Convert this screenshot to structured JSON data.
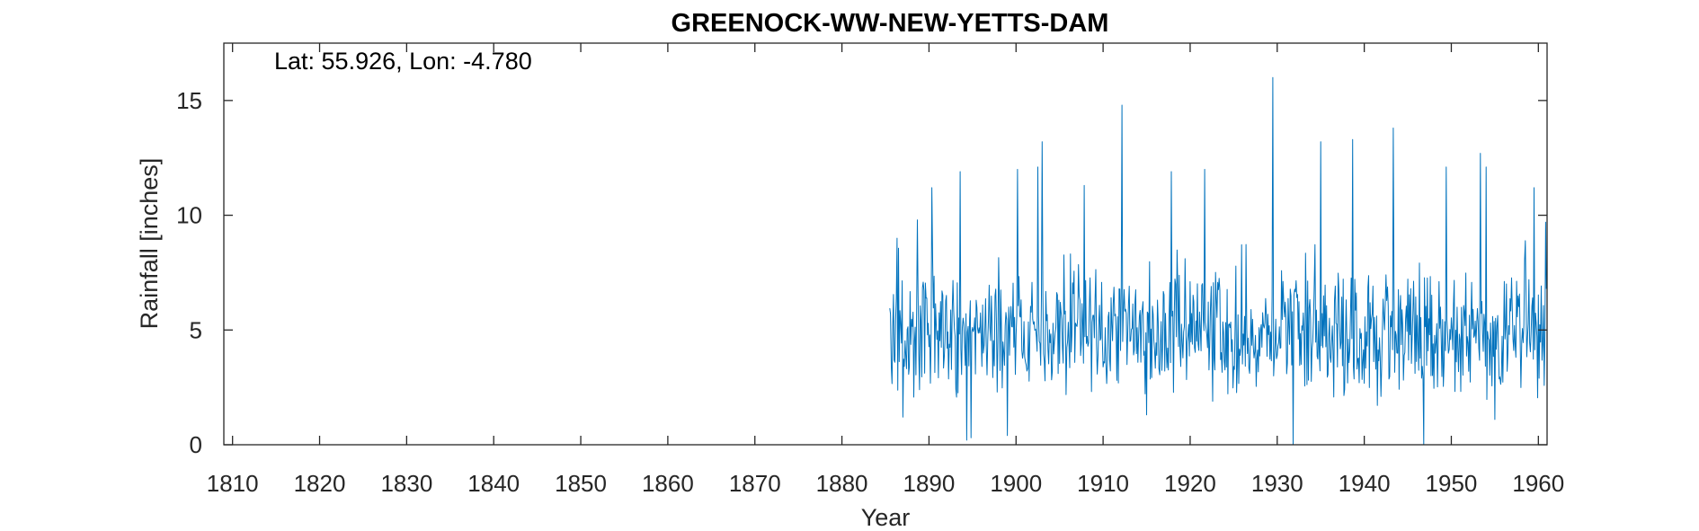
{
  "chart_data": {
    "type": "line",
    "title": "GREENOCK-WW-NEW-YETTS-DAM",
    "annotation": "Lat: 55.926, Lon: -4.780",
    "xlabel": "Year",
    "ylabel": "Rainfall [inches]",
    "xlim": [
      1809,
      1961
    ],
    "ylim": [
      0,
      17.5
    ],
    "xticks": [
      1810,
      1820,
      1830,
      1840,
      1850,
      1860,
      1870,
      1880,
      1890,
      1900,
      1910,
      1920,
      1930,
      1940,
      1950,
      1960
    ],
    "yticks": [
      0,
      5,
      10,
      15
    ],
    "grid": false,
    "line_color": "#0072BD",
    "series": [
      {
        "data_start": 1885.5,
        "data_end": 1960.9,
        "points_per_year": 12,
        "peaks": [
          {
            "x": 1885.6,
            "y": 5.7
          },
          {
            "x": 1886.3,
            "y": 9.0
          },
          {
            "x": 1887.0,
            "y": 1.2
          },
          {
            "x": 1888.7,
            "y": 9.8
          },
          {
            "x": 1890.3,
            "y": 11.2
          },
          {
            "x": 1893.6,
            "y": 11.9
          },
          {
            "x": 1894.3,
            "y": 0.2
          },
          {
            "x": 1894.8,
            "y": 0.3
          },
          {
            "x": 1899.0,
            "y": 0.4
          },
          {
            "x": 1900.2,
            "y": 12.0
          },
          {
            "x": 1902.5,
            "y": 12.1
          },
          {
            "x": 1903.0,
            "y": 13.2
          },
          {
            "x": 1907.8,
            "y": 11.3
          },
          {
            "x": 1912.2,
            "y": 14.8
          },
          {
            "x": 1915.0,
            "y": 1.3
          },
          {
            "x": 1917.8,
            "y": 11.9
          },
          {
            "x": 1921.7,
            "y": 12.0
          },
          {
            "x": 1929.5,
            "y": 16.0
          },
          {
            "x": 1931.8,
            "y": 0.0
          },
          {
            "x": 1935.0,
            "y": 13.2
          },
          {
            "x": 1938.7,
            "y": 13.3
          },
          {
            "x": 1943.3,
            "y": 13.8
          },
          {
            "x": 1946.8,
            "y": 0.0
          },
          {
            "x": 1949.4,
            "y": 12.1
          },
          {
            "x": 1953.3,
            "y": 12.7
          },
          {
            "x": 1954.0,
            "y": 12.1
          },
          {
            "x": 1955.0,
            "y": 1.1
          },
          {
            "x": 1959.5,
            "y": 11.2
          },
          {
            "x": 1960.8,
            "y": 9.7
          }
        ]
      }
    ]
  }
}
